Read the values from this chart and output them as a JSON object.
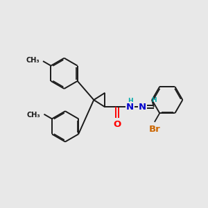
{
  "background_color": "#e8e8e8",
  "bond_color": "#1a1a1a",
  "bond_width": 1.4,
  "atom_colors": {
    "O": "#ff0000",
    "N": "#0000cd",
    "Br": "#cc6600",
    "H": "#00aaaa",
    "C": "#1a1a1a"
  },
  "font_size_label": 8.5,
  "font_size_small": 7.0
}
